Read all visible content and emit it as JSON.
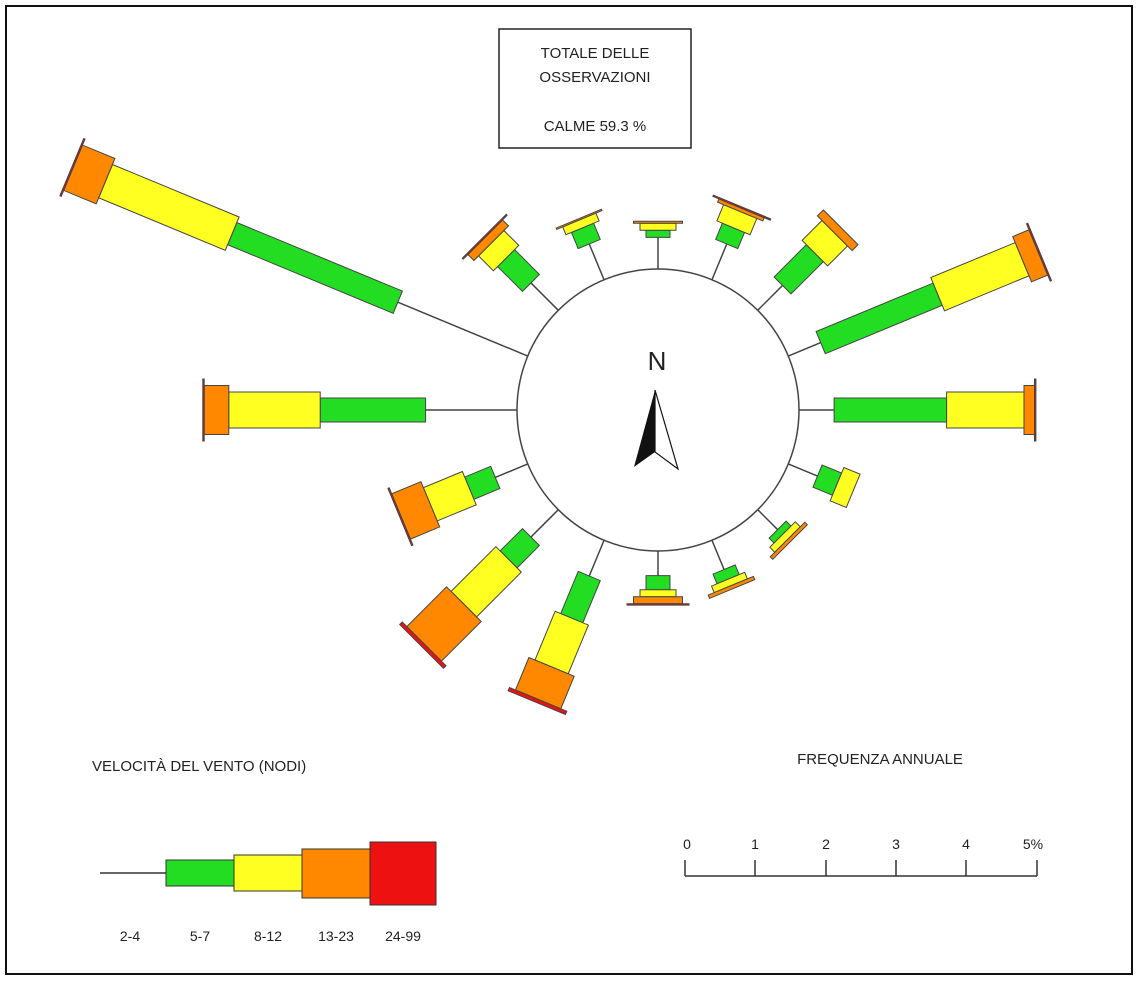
{
  "info_box": {
    "line1": "TOTALE DELLE",
    "line2": "OSSERVAZIONI",
    "calms": "CALME 59.3 %"
  },
  "north_label": "N",
  "legend": {
    "title": "VELOCITÀ DEL VENTO (NODI)",
    "classes": [
      "2-4",
      "5-7",
      "8-12",
      "13-23",
      "24-99"
    ]
  },
  "scale": {
    "title": "FREQUENZA ANNUALE",
    "ticks": [
      "0",
      "1",
      "2",
      "3",
      "4",
      "5%"
    ]
  },
  "colors": {
    "band_2_4": "#555555",
    "band_5_7": "#22dd22",
    "band_8_12": "#ffff22",
    "band_13_23": "#ff8800",
    "band_24_99": "#ee1111"
  },
  "chart_data": {
    "type": "wind-rose",
    "units": "% annual frequency",
    "calms_percent": 59.3,
    "speed_classes_knots": [
      "2-4",
      "5-7",
      "8-12",
      "13-23",
      "24-99"
    ],
    "directions": [
      {
        "bearing": 0,
        "values": [
          0.45,
          0.1,
          0.1,
          0.03,
          0.0
        ]
      },
      {
        "bearing": 22.5,
        "values": [
          0.55,
          0.25,
          0.25,
          0.05,
          0.02
        ]
      },
      {
        "bearing": 45,
        "values": [
          0.5,
          0.65,
          0.4,
          0.12,
          0.0
        ]
      },
      {
        "bearing": 67.5,
        "values": [
          0.5,
          1.8,
          1.3,
          0.25,
          0.02
        ]
      },
      {
        "bearing": 90,
        "values": [
          0.5,
          1.6,
          1.1,
          0.15,
          0.02
        ]
      },
      {
        "bearing": 112.5,
        "values": [
          0.45,
          0.3,
          0.25,
          0.0,
          0.0
        ]
      },
      {
        "bearing": 135,
        "values": [
          0.4,
          0.1,
          0.1,
          0.05,
          0.0
        ]
      },
      {
        "bearing": 157.5,
        "values": [
          0.45,
          0.15,
          0.1,
          0.05,
          0.0
        ]
      },
      {
        "bearing": 180,
        "values": [
          0.35,
          0.2,
          0.1,
          0.1,
          0.02
        ]
      },
      {
        "bearing": 202.5,
        "values": [
          0.55,
          0.65,
          0.75,
          0.5,
          0.05
        ]
      },
      {
        "bearing": 225,
        "values": [
          0.55,
          0.45,
          0.9,
          0.8,
          0.05
        ]
      },
      {
        "bearing": 247.5,
        "values": [
          0.5,
          0.4,
          0.6,
          0.45,
          0.02
        ]
      },
      {
        "bearing": 270,
        "values": [
          1.3,
          1.5,
          1.3,
          0.35,
          0.02
        ]
      },
      {
        "bearing": 292.5,
        "values": [
          2.0,
          2.55,
          1.95,
          0.5,
          0.02
        ]
      },
      {
        "bearing": 315,
        "values": [
          0.55,
          0.5,
          0.3,
          0.12,
          0.02
        ]
      },
      {
        "bearing": 337.5,
        "values": [
          0.55,
          0.25,
          0.12,
          0.02,
          0.0
        ]
      }
    ]
  }
}
